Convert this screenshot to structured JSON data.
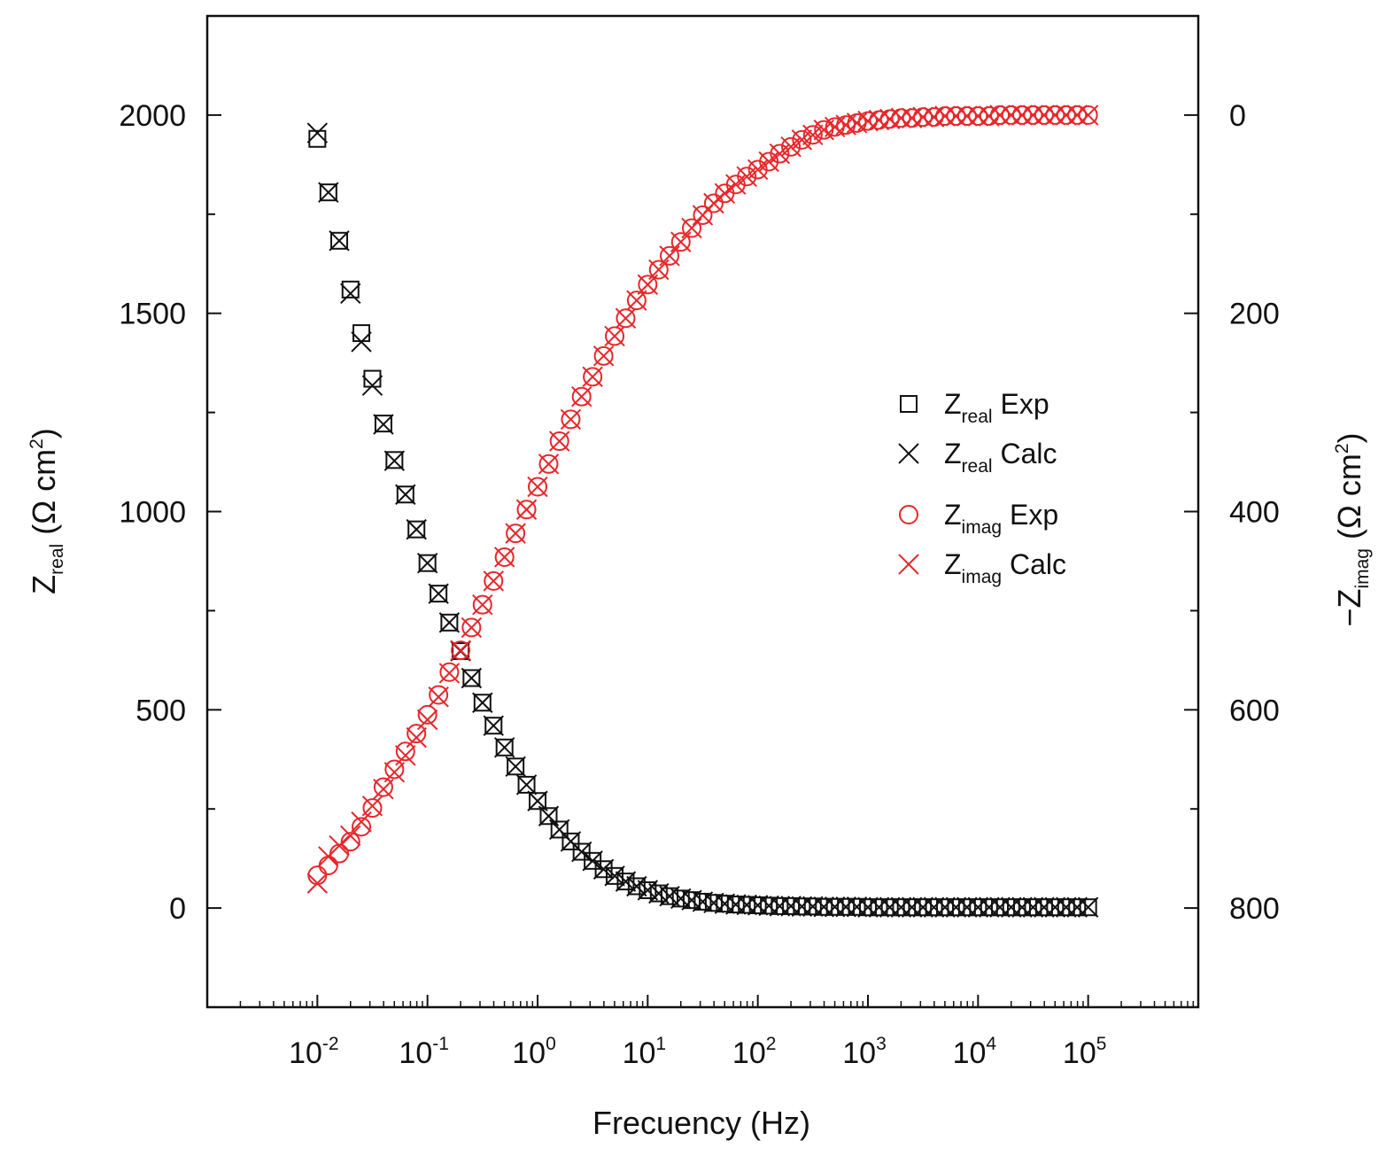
{
  "chart_data": {
    "type": "scatter",
    "x_scale": "log",
    "xlim": [
      0.001,
      1000000
    ],
    "ylim_left": [
      -250,
      2250
    ],
    "ylim_right": [
      900,
      -100
    ],
    "grid": false,
    "legend_position": "right-center",
    "colors": {
      "real": "#111111",
      "imag": "#e8262a"
    },
    "x_ticks": [
      {
        "base": "10",
        "exp": "-2"
      },
      {
        "base": "10",
        "exp": "-1"
      },
      {
        "base": "10",
        "exp": "0"
      },
      {
        "base": "10",
        "exp": "1"
      },
      {
        "base": "10",
        "exp": "2"
      },
      {
        "base": "10",
        "exp": "3"
      },
      {
        "base": "10",
        "exp": "4"
      },
      {
        "base": "10",
        "exp": "5"
      }
    ],
    "y_left_ticks": [
      "2000",
      "1500",
      "1000",
      "500",
      "0"
    ],
    "y_right_ticks": [
      "0",
      "200",
      "400",
      "600",
      "800"
    ],
    "xlabel": "Frecuency (Hz)",
    "ylabel_left": {
      "main": "Z",
      "sub": "real",
      "units_open": " (Ω cm",
      "units_sup": "2",
      "units_close": ")"
    },
    "ylabel_right": {
      "main": "−Z",
      "sub": "imag",
      "units_open": " (Ω cm",
      "units_sup": "2",
      "units_close": ")"
    },
    "legend": [
      {
        "main": "Z",
        "sub": "real",
        "text": " Exp",
        "marker": "square",
        "color": "#111111"
      },
      {
        "main": "Z",
        "sub": "real",
        "text": " Calc",
        "marker": "x",
        "color": "#111111"
      },
      {
        "main": "Z",
        "sub": "imag",
        "text": " Exp",
        "marker": "circle",
        "color": "#e8262a"
      },
      {
        "main": "Z",
        "sub": "imag",
        "text": " Calc",
        "marker": "x",
        "color": "#e8262a"
      }
    ],
    "series": [
      {
        "name": "Zreal Exp",
        "axis": "left",
        "marker": "square",
        "x": [
          0.01,
          0.0126,
          0.0158,
          0.02,
          0.0251,
          0.0316,
          0.0398,
          0.0501,
          0.0631,
          0.0794,
          0.1,
          0.126,
          0.158,
          0.2,
          0.251,
          0.316,
          0.398,
          0.501,
          0.631,
          0.794,
          1,
          1.26,
          1.58,
          2,
          2.51,
          3.16,
          3.98,
          5.01,
          6.31,
          7.94,
          10,
          12.6,
          15.8,
          20,
          25.1,
          31.6,
          39.8,
          50.1,
          63.1,
          79.4,
          100,
          126,
          158,
          200,
          251,
          316,
          398,
          501,
          631,
          794,
          1000,
          1260,
          1580,
          2000,
          2510,
          3160,
          3980,
          5010,
          6310,
          7940,
          10000,
          12600,
          15800,
          20000,
          25100,
          31600,
          39800,
          50100,
          63100,
          79400,
          100000
        ],
        "y": [
          1940,
          1805,
          1683,
          1560,
          1450,
          1335,
          1222,
          1130,
          1043,
          955,
          870,
          793,
          720,
          648,
          580,
          518,
          460,
          405,
          357,
          311,
          270,
          232,
          198,
          168,
          142,
          119,
          98,
          81,
          67,
          55,
          45,
          37,
          30,
          24,
          20,
          16,
          13,
          11,
          9,
          8,
          7,
          6,
          5,
          5,
          4,
          4,
          3,
          3,
          3,
          3,
          2,
          2,
          2,
          2,
          2,
          2,
          2,
          2,
          2,
          2,
          2,
          2,
          2,
          2,
          2,
          2,
          2,
          2,
          2,
          2,
          2
        ]
      },
      {
        "name": "Zreal Calc",
        "axis": "left",
        "marker": "x",
        "x": [
          0.01,
          0.0126,
          0.0158,
          0.02,
          0.0251,
          0.0316,
          0.0398,
          0.0501,
          0.0631,
          0.0794,
          0.1,
          0.126,
          0.158,
          0.2,
          0.251,
          0.316,
          0.398,
          0.501,
          0.631,
          0.794,
          1,
          1.26,
          1.58,
          2,
          2.51,
          3.16,
          3.98,
          5.01,
          6.31,
          7.94,
          10,
          12.6,
          15.8,
          20,
          25.1,
          31.6,
          39.8,
          50.1,
          63.1,
          79.4,
          100,
          126,
          158,
          200,
          251,
          316,
          398,
          501,
          631,
          794,
          1000,
          1260,
          1580,
          2000,
          2510,
          3160,
          3980,
          5010,
          6310,
          7940,
          10000,
          12600,
          15800,
          20000,
          25100,
          31600,
          39800,
          50100,
          63100,
          79400,
          100000
        ],
        "y": [
          1955,
          1805,
          1683,
          1550,
          1428,
          1318,
          1220,
          1128,
          1043,
          955,
          870,
          793,
          720,
          648,
          580,
          518,
          460,
          405,
          357,
          311,
          270,
          232,
          198,
          168,
          142,
          119,
          98,
          81,
          67,
          55,
          45,
          37,
          30,
          24,
          20,
          16,
          13,
          11,
          9,
          8,
          7,
          6,
          5,
          5,
          4,
          4,
          3,
          3,
          3,
          3,
          2,
          2,
          2,
          2,
          2,
          2,
          2,
          2,
          2,
          2,
          2,
          2,
          2,
          2,
          2,
          2,
          2,
          2,
          2,
          2,
          2
        ]
      },
      {
        "name": "Zimag Exp",
        "axis": "right",
        "marker": "circle",
        "x": [
          0.01,
          0.0126,
          0.0158,
          0.02,
          0.0251,
          0.0316,
          0.0398,
          0.0501,
          0.0631,
          0.0794,
          0.1,
          0.126,
          0.158,
          0.2,
          0.251,
          0.316,
          0.398,
          0.501,
          0.631,
          0.794,
          1,
          1.26,
          1.58,
          2,
          2.51,
          3.16,
          3.98,
          5.01,
          6.31,
          7.94,
          10,
          12.6,
          15.8,
          20,
          25.1,
          31.6,
          39.8,
          50.1,
          63.1,
          79.4,
          100,
          126,
          158,
          200,
          251,
          316,
          398,
          501,
          631,
          794,
          1000,
          1260,
          1580,
          2000,
          2510,
          3160,
          3980,
          5010,
          6310,
          7940,
          10000,
          12600,
          15800,
          20000,
          25100,
          31600,
          39800,
          50100,
          63100,
          79400,
          100000
        ],
        "y": [
          767,
          757,
          745,
          733,
          718,
          699,
          678,
          660,
          642,
          624,
          605,
          585,
          562,
          540,
          517,
          494,
          470,
          446,
          422,
          398,
          375,
          352,
          329,
          307,
          284,
          264,
          243,
          223,
          205,
          187,
          171,
          156,
          142,
          128,
          114,
          101,
          89,
          79,
          70,
          62,
          55,
          47,
          39,
          32,
          25,
          20,
          15,
          12,
          10,
          8,
          6,
          5,
          4,
          3,
          3,
          2,
          2,
          1,
          1,
          1,
          1,
          1,
          0,
          0,
          0,
          0,
          0,
          0,
          0,
          0,
          0
        ]
      },
      {
        "name": "Zimag Calc",
        "axis": "right",
        "marker": "x",
        "x": [
          0.01,
          0.0126,
          0.0158,
          0.02,
          0.0251,
          0.0316,
          0.0398,
          0.0501,
          0.0631,
          0.0794,
          0.1,
          0.126,
          0.158,
          0.2,
          0.251,
          0.316,
          0.398,
          0.501,
          0.631,
          0.794,
          1,
          1.26,
          1.58,
          2,
          2.51,
          3.16,
          3.98,
          5.01,
          6.31,
          7.94,
          10,
          12.6,
          15.8,
          20,
          25.1,
          31.6,
          39.8,
          50.1,
          63.1,
          79.4,
          100,
          126,
          158,
          200,
          251,
          316,
          398,
          501,
          631,
          794,
          1000,
          1260,
          1580,
          2000,
          2510,
          3160,
          3980,
          5010,
          6310,
          7940,
          10000,
          12600,
          15800,
          20000,
          25100,
          31600,
          39800,
          50100,
          63100,
          79400,
          100000
        ],
        "y": [
          775,
          748,
          737,
          727,
          713,
          697,
          680,
          663,
          646,
          628,
          610,
          587,
          563,
          540,
          517,
          494,
          470,
          446,
          422,
          398,
          375,
          352,
          329,
          307,
          284,
          264,
          243,
          223,
          205,
          187,
          171,
          156,
          142,
          128,
          114,
          101,
          89,
          79,
          70,
          62,
          55,
          47,
          39,
          32,
          25,
          20,
          15,
          12,
          10,
          8,
          6,
          5,
          4,
          3,
          3,
          2,
          2,
          1,
          1,
          1,
          1,
          1,
          0,
          0,
          0,
          0,
          0,
          0,
          0,
          0,
          0
        ]
      }
    ]
  }
}
